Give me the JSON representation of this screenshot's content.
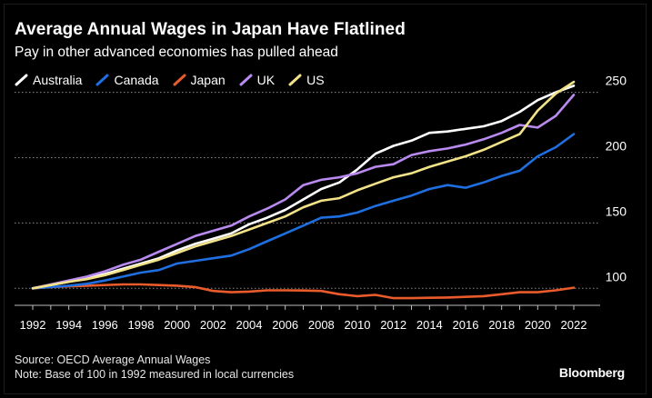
{
  "header": {
    "title": "Average Annual Wages in Japan Have Flatlined",
    "subtitle": "Pay in other advanced economies has pulled ahead"
  },
  "legend": [
    {
      "label": "Australia",
      "color": "#ffffff"
    },
    {
      "label": "Canada",
      "color": "#1f6fe0"
    },
    {
      "label": "Japan",
      "color": "#ea5b2c"
    },
    {
      "label": "UK",
      "color": "#b98af0"
    },
    {
      "label": "US",
      "color": "#f2e389"
    }
  ],
  "footer": {
    "source": "Source: OECD Average Annual Wages",
    "note": "Note: Base of 100 in 1992 measured in local currencies",
    "brand": "Bloomberg"
  },
  "chart_data": {
    "type": "line",
    "title": "Average Annual Wages in Japan Have Flatlined",
    "subtitle": "Pay in other advanced economies has pulled ahead",
    "xlabel": "",
    "ylabel": "",
    "x": [
      1992,
      1993,
      1994,
      1995,
      1996,
      1997,
      1998,
      1999,
      2000,
      2001,
      2002,
      2003,
      2004,
      2005,
      2006,
      2007,
      2008,
      2009,
      2010,
      2011,
      2012,
      2013,
      2014,
      2015,
      2016,
      2017,
      2018,
      2019,
      2020,
      2021,
      2022
    ],
    "xticks": [
      "1992",
      "1994",
      "1996",
      "1998",
      "2000",
      "2002",
      "2004",
      "2006",
      "2008",
      "2010",
      "2012",
      "2014",
      "2016",
      "2018",
      "2020",
      "2022"
    ],
    "yticks": [
      "100",
      "150",
      "200",
      "250"
    ],
    "ylim": [
      87,
      265
    ],
    "grid": true,
    "series": [
      {
        "name": "Australia",
        "color": "#ffffff",
        "values": [
          100,
          102.5,
          105,
          108,
          111,
          115,
          119,
          123,
          129,
          134,
          138,
          142,
          149,
          154,
          160,
          168,
          176,
          181,
          191,
          203,
          209,
          213,
          219,
          220,
          222,
          224,
          228,
          235,
          244,
          250,
          255
        ]
      },
      {
        "name": "Canada",
        "color": "#1f6fe0",
        "values": [
          100,
          101,
          102,
          103.5,
          106,
          109,
          112,
          114,
          119,
          121,
          123,
          125,
          130,
          136,
          142,
          148,
          154,
          155,
          158,
          163,
          167,
          171,
          176,
          179,
          177,
          181,
          186,
          190,
          201,
          208,
          218
        ]
      },
      {
        "name": "Japan",
        "color": "#ea5b2c",
        "values": [
          100,
          101,
          101.5,
          102,
          102.5,
          103,
          103,
          102.5,
          102,
          101,
          98,
          97,
          97.5,
          98.5,
          98.5,
          98.3,
          98,
          95.5,
          94,
          95,
          92.5,
          92.5,
          92.8,
          93,
          93.5,
          94,
          95.5,
          97,
          97,
          98.5,
          100.5
        ]
      },
      {
        "name": "UK",
        "color": "#b98af0",
        "values": [
          100,
          103,
          106,
          109,
          113,
          118,
          122,
          128,
          134,
          140,
          144,
          148,
          155,
          161,
          168,
          179,
          183,
          185,
          188,
          193,
          195,
          202,
          205,
          207,
          210,
          214,
          219,
          225,
          223,
          232,
          248
        ]
      },
      {
        "name": "US",
        "color": "#f2e389",
        "values": [
          100,
          102.5,
          105,
          107,
          110,
          114,
          118,
          122,
          127,
          132,
          136,
          140,
          145,
          150,
          155,
          162,
          167,
          169,
          175,
          180,
          185,
          188,
          193,
          197,
          201,
          206,
          212,
          218,
          236,
          249,
          258
        ]
      }
    ]
  }
}
